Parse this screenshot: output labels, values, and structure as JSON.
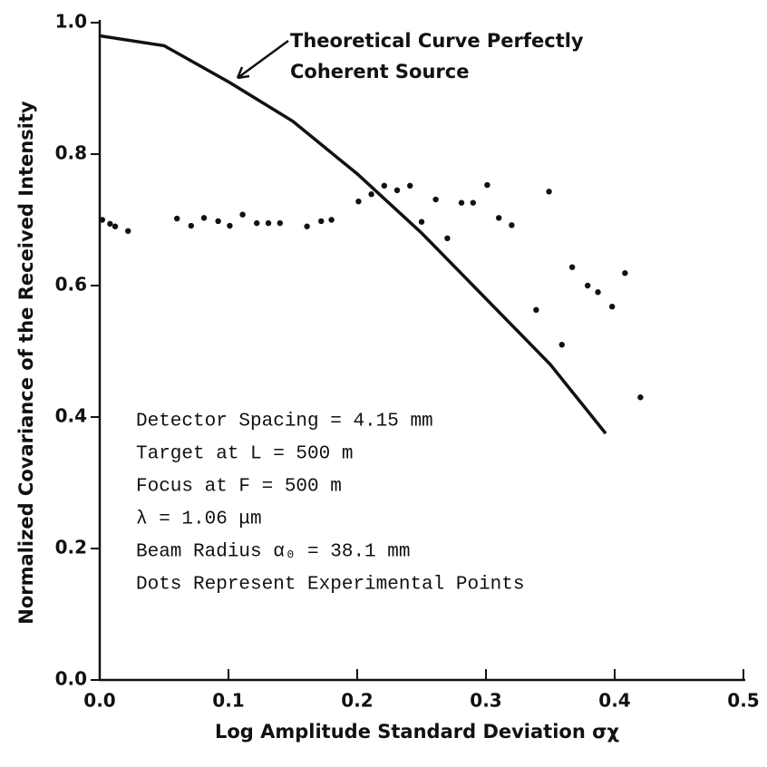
{
  "chart_data": {
    "type": "scatter",
    "xlabel": "Log Amplitude Standard Deviation σχ",
    "ylabel": "Normalized Covariance of the Received Intensity",
    "xlim": [
      0,
      0.5
    ],
    "ylim": [
      0,
      1
    ],
    "xticks": [
      {
        "value": 0,
        "label": "0.0"
      },
      0.1,
      0.2,
      0.3,
      0.4,
      0.5
    ],
    "yticks": [
      {
        "value": 0,
        "label": "0.0"
      },
      0.2,
      0.4,
      0.6,
      0.8,
      {
        "value": 1,
        "label": "1.0"
      }
    ],
    "curve_annotation": [
      "Theoretical Curve Perfectly",
      "Coherent Source"
    ],
    "notes": [
      "Detector Spacing = 4.15 mm",
      "Target at L = 500 m",
      "Focus at F = 500 m",
      "λ = 1.06 μm",
      "Beam Radius α₀ = 38.1 mm",
      "Dots Represent Experimental Points"
    ],
    "color": "#111111",
    "curve": {
      "x": [
        0,
        0.05,
        0.1,
        0.15,
        0.2,
        0.25,
        0.3,
        0.35,
        0.393
      ],
      "y": [
        0.98,
        0.965,
        0.91,
        0.85,
        0.77,
        0.68,
        0.58,
        0.48,
        0.375
      ]
    },
    "points": {
      "x": [
        0.002,
        0.008,
        0.012,
        0.022,
        0.06,
        0.071,
        0.081,
        0.092,
        0.101,
        0.111,
        0.122,
        0.131,
        0.14,
        0.161,
        0.172,
        0.18,
        0.201,
        0.211,
        0.221,
        0.231,
        0.241,
        0.25,
        0.261,
        0.27,
        0.281,
        0.29,
        0.301,
        0.31,
        0.32,
        0.339,
        0.349,
        0.359,
        0.367,
        0.379,
        0.387,
        0.398,
        0.408,
        0.42
      ],
      "y": [
        0.7,
        0.694,
        0.69,
        0.683,
        0.702,
        0.691,
        0.703,
        0.698,
        0.691,
        0.708,
        0.695,
        0.695,
        0.695,
        0.69,
        0.698,
        0.7,
        0.728,
        0.739,
        0.752,
        0.745,
        0.752,
        0.697,
        0.731,
        0.672,
        0.726,
        0.726,
        0.753,
        0.703,
        0.692,
        0.563,
        0.743,
        0.51,
        0.628,
        0.6,
        0.59,
        0.568,
        0.619,
        0.43
      ]
    }
  }
}
